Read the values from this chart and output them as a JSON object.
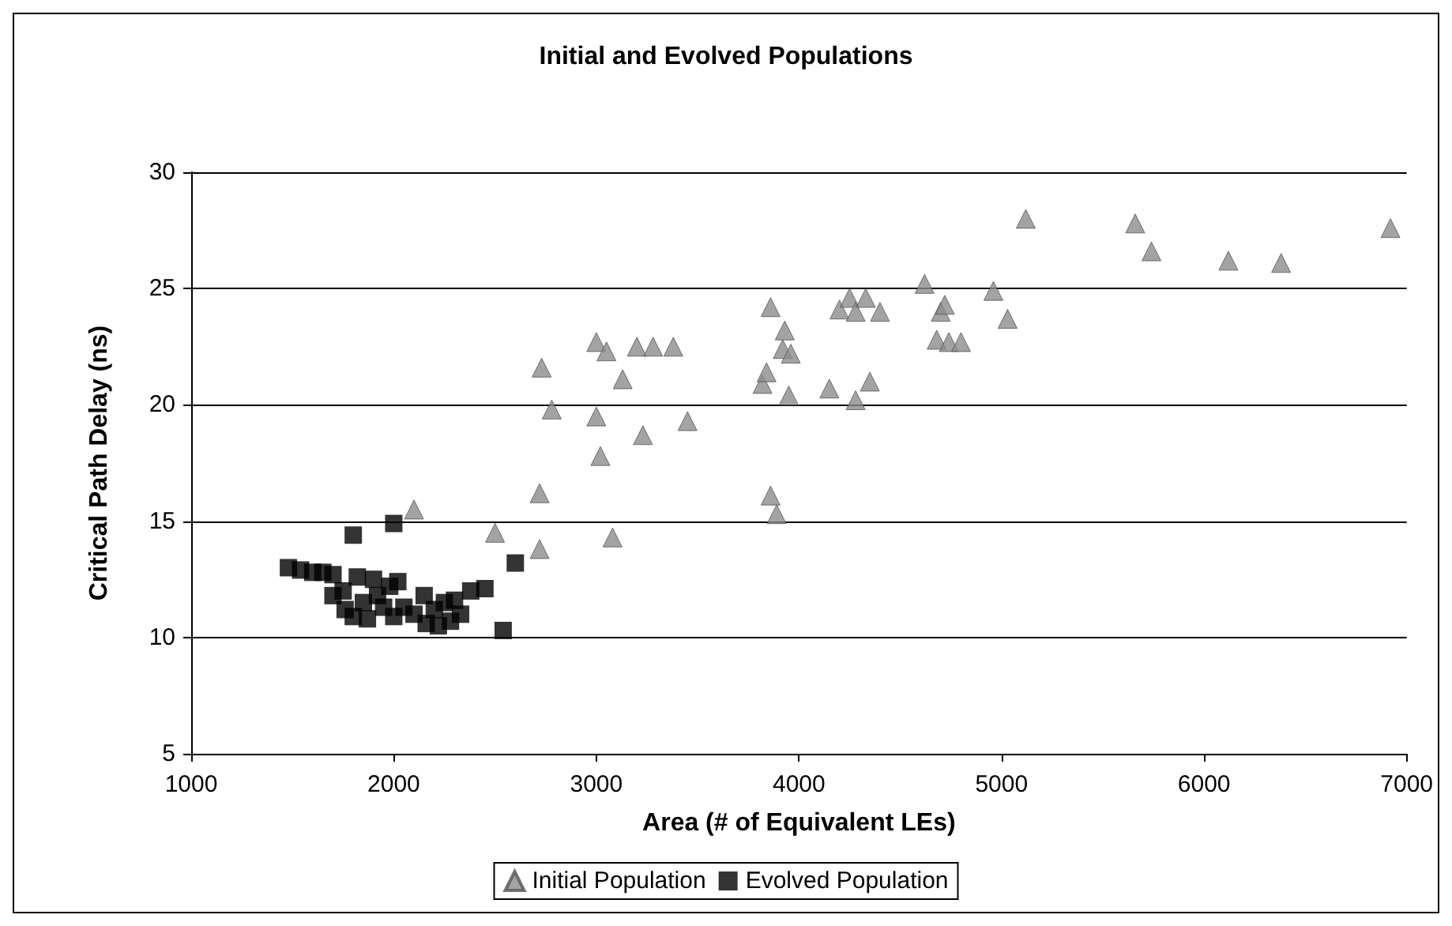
{
  "chart_data": {
    "type": "scatter",
    "title": "Initial and Evolved Populations",
    "xlabel": "Area (# of Equivalent LEs)",
    "ylabel": "Critical Path Delay (ns)",
    "xlim": [
      1000,
      7000
    ],
    "xticks": [
      1000,
      2000,
      3000,
      4000,
      5000,
      6000,
      7000
    ],
    "ylim": [
      5,
      30
    ],
    "yticks": [
      5,
      10,
      15,
      20,
      25,
      30
    ],
    "grid": "y",
    "legend": "bottom",
    "series": [
      {
        "name": "Initial Population",
        "color": "#8c8c8c",
        "marker": "triangle",
        "x": [
          2100,
          2500,
          2720,
          2720,
          2730,
          2780,
          3000,
          3000,
          3020,
          3050,
          3080,
          3130,
          3200,
          3230,
          3280,
          3380,
          3450,
          3820,
          3840,
          3860,
          3860,
          3890,
          3920,
          3930,
          3950,
          3960,
          4150,
          4200,
          4250,
          4280,
          4280,
          4330,
          4350,
          4400,
          4620,
          4680,
          4700,
          4720,
          4740,
          4800,
          4960,
          5030,
          5120,
          5660,
          5740,
          6120,
          6380,
          6920
        ],
        "values": [
          15.5,
          14.5,
          16.2,
          13.8,
          21.6,
          19.8,
          22.7,
          19.5,
          17.8,
          22.3,
          14.3,
          21.1,
          22.5,
          18.7,
          22.5,
          22.5,
          19.3,
          20.9,
          21.4,
          24.2,
          16.1,
          15.3,
          22.4,
          23.2,
          20.4,
          22.2,
          20.7,
          24.1,
          24.6,
          24.0,
          20.2,
          24.6,
          21.0,
          24.0,
          25.2,
          22.8,
          24.0,
          24.3,
          22.7,
          22.7,
          24.9,
          23.7,
          28.0,
          27.8,
          26.6,
          26.2,
          26.1,
          27.6
        ]
      },
      {
        "name": "Evolved Population",
        "color": "#000000",
        "marker": "square",
        "x": [
          1480,
          1540,
          1600,
          1650,
          1700,
          1700,
          1750,
          1760,
          1800,
          1800,
          1820,
          1850,
          1870,
          1900,
          1920,
          1950,
          1980,
          2000,
          2000,
          2020,
          2050,
          2100,
          2150,
          2160,
          2200,
          2220,
          2250,
          2280,
          2300,
          2330,
          2380,
          2450,
          2540,
          2600
        ],
        "values": [
          13.0,
          12.9,
          12.8,
          12.8,
          12.7,
          11.8,
          12.0,
          11.2,
          14.4,
          10.9,
          12.6,
          11.5,
          10.8,
          12.5,
          11.8,
          11.3,
          12.2,
          14.9,
          10.9,
          12.4,
          11.3,
          11.0,
          11.8,
          10.6,
          11.2,
          10.5,
          11.5,
          10.7,
          11.6,
          11.0,
          12.0,
          12.1,
          10.3,
          13.2
        ]
      }
    ]
  }
}
